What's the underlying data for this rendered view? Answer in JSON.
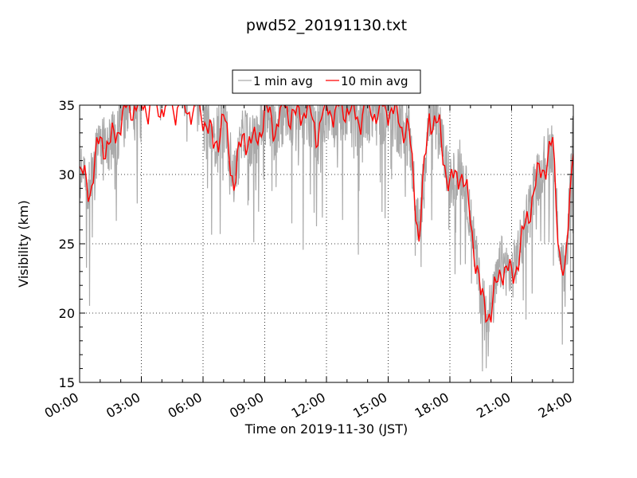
{
  "chart_data": {
    "type": "line",
    "title": "pwd52_20191130.txt",
    "xlabel": "Time on 2019-11-30 (JST)",
    "ylabel": "Visibility (km)",
    "xlim": [
      "00:00",
      "24:00"
    ],
    "ylim": [
      15,
      35
    ],
    "x_ticks": [
      "00:00",
      "03:00",
      "06:00",
      "09:00",
      "12:00",
      "15:00",
      "18:00",
      "21:00",
      "24:00"
    ],
    "y_ticks": [
      "15",
      "20",
      "25",
      "30",
      "35"
    ],
    "grid": true,
    "legend": "top-center",
    "series": [
      {
        "name": "1 min avg",
        "color": "#aaaaaa"
      },
      {
        "name": "10 min avg",
        "color": "#ff0000"
      }
    ],
    "profile_10min_hours": [
      0.0,
      0.5,
      1.0,
      1.5,
      2.0,
      2.5,
      3.0,
      4.0,
      5.0,
      6.0,
      6.5,
      7.0,
      7.5,
      8.0,
      8.5,
      9.0,
      9.5,
      10.0,
      10.5,
      11.0,
      11.5,
      12.0,
      12.5,
      13.0,
      13.5,
      14.0,
      14.5,
      15.0,
      15.5,
      16.0,
      16.5,
      17.0,
      17.5,
      18.0,
      18.5,
      19.0,
      19.5,
      20.0,
      20.5,
      21.0,
      21.5,
      22.0,
      22.5,
      23.0,
      23.3,
      23.6,
      24.0
    ],
    "profile_10min_km": [
      30.0,
      29.0,
      32.5,
      32.0,
      34.0,
      35.0,
      35.0,
      35.0,
      35.0,
      34.5,
      32.0,
      34.0,
      29.5,
      33.0,
      32.0,
      34.5,
      33.5,
      35.0,
      34.0,
      35.0,
      33.0,
      35.0,
      34.5,
      35.0,
      34.0,
      35.0,
      34.5,
      35.0,
      34.0,
      33.0,
      25.5,
      34.5,
      33.0,
      29.0,
      30.5,
      27.0,
      21.0,
      20.0,
      23.5,
      22.5,
      25.0,
      28.5,
      30.5,
      32.0,
      25.0,
      22.0,
      33.0
    ]
  }
}
